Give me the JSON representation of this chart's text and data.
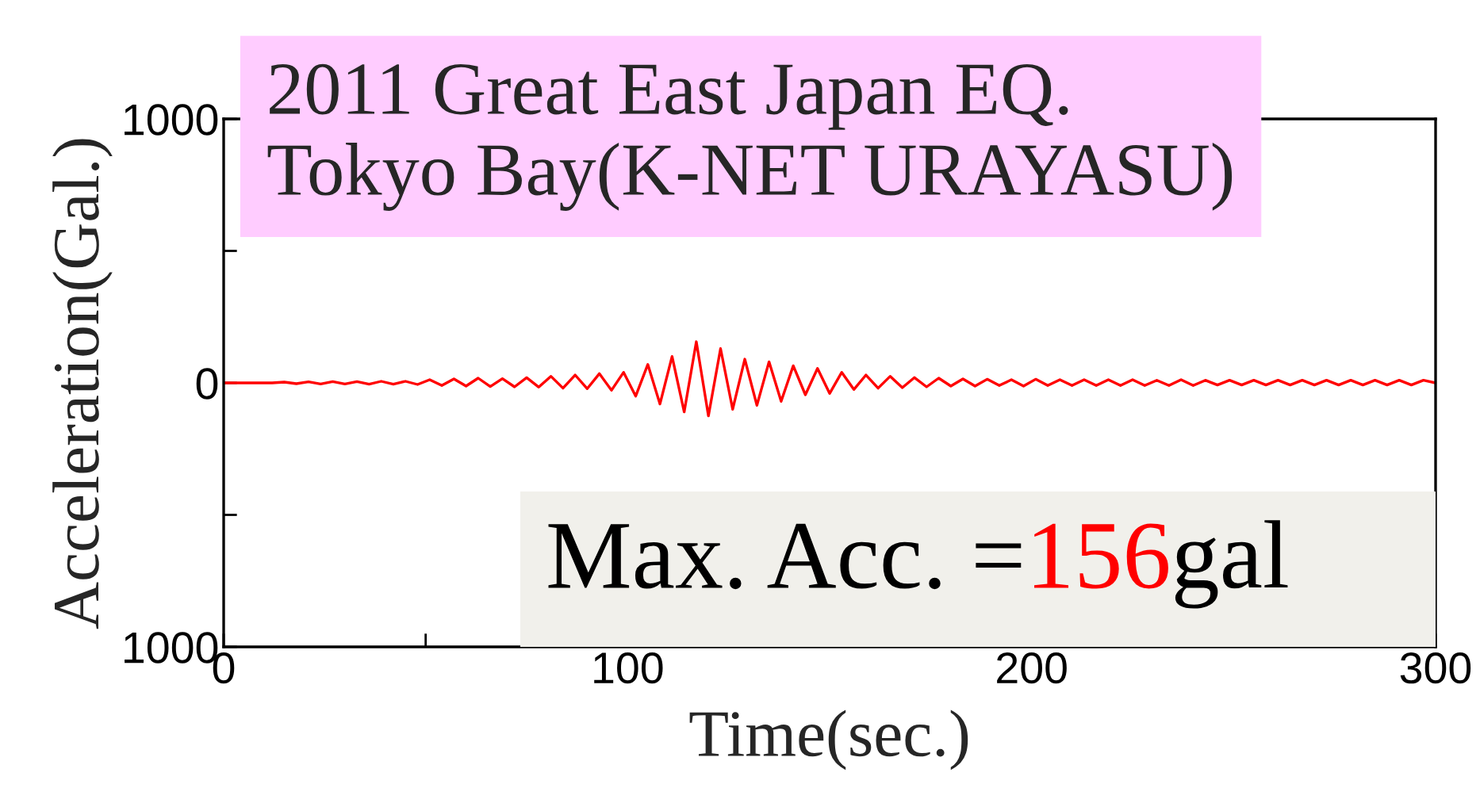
{
  "chart_data": {
    "type": "line",
    "title": "2011 Great East Japan EQ.\nTokyo Bay(K-NET URAYASU)",
    "xlabel": "Time(sec.)",
    "ylabel": "Acceleration(Gal.)",
    "annotations": [
      "Max. Acc. =",
      "156",
      "gal"
    ],
    "xlim": [
      0,
      300
    ],
    "xticks": [
      0,
      {
        "value": 50,
        "label": null
      },
      100,
      {
        "value": 150,
        "label": null
      },
      200,
      {
        "value": 250,
        "label": null
      },
      300
    ],
    "ylim": [
      -1000,
      1000
    ],
    "yticks": [
      {
        "value": -1000,
        "label": "1000"
      },
      {
        "value": -500,
        "label": null
      },
      0,
      {
        "value": 500,
        "label": null
      },
      1000
    ],
    "grid": false,
    "legend": false,
    "marker": "none",
    "line_style": "solid",
    "series": [
      {
        "color": "#ff0000",
        "x": [
          0,
          3,
          6,
          9,
          12,
          15,
          18,
          21,
          24,
          27,
          30,
          33,
          36,
          39,
          42,
          45,
          48,
          51,
          54,
          57,
          60,
          63,
          66,
          69,
          72,
          75,
          78,
          81,
          84,
          87,
          90,
          93,
          96,
          99,
          102,
          105,
          108,
          111,
          114,
          117,
          120,
          123,
          126,
          129,
          132,
          135,
          138,
          141,
          144,
          147,
          150,
          153,
          156,
          159,
          162,
          165,
          168,
          171,
          174,
          177,
          180,
          183,
          186,
          189,
          192,
          195,
          198,
          201,
          204,
          207,
          210,
          213,
          216,
          219,
          222,
          225,
          228,
          231,
          234,
          237,
          240,
          243,
          246,
          249,
          252,
          255,
          258,
          261,
          264,
          267,
          270,
          273,
          276,
          279,
          282,
          285,
          288,
          291,
          294,
          297,
          300
        ],
        "values": [
          0,
          0,
          0,
          0,
          0,
          3,
          -3,
          4,
          -4,
          5,
          -4,
          5,
          -5,
          6,
          -5,
          6,
          -6,
          12,
          -10,
          15,
          -12,
          18,
          -14,
          16,
          -15,
          20,
          -16,
          25,
          -20,
          30,
          -22,
          35,
          -28,
          40,
          -50,
          70,
          -80,
          100,
          -110,
          156,
          -125,
          130,
          -100,
          90,
          -85,
          80,
          -70,
          65,
          -45,
          55,
          -40,
          40,
          -25,
          30,
          -20,
          25,
          -18,
          20,
          -15,
          18,
          -12,
          15,
          -12,
          14,
          -10,
          12,
          -12,
          14,
          -10,
          12,
          -10,
          12,
          -10,
          12,
          -10,
          12,
          -10,
          10,
          -10,
          12,
          -10,
          10,
          -8,
          10,
          -8,
          10,
          -8,
          10,
          -8,
          10,
          -8,
          10,
          -8,
          10,
          -8,
          10,
          -8,
          10,
          -8,
          10,
          0
        ]
      }
    ]
  }
}
